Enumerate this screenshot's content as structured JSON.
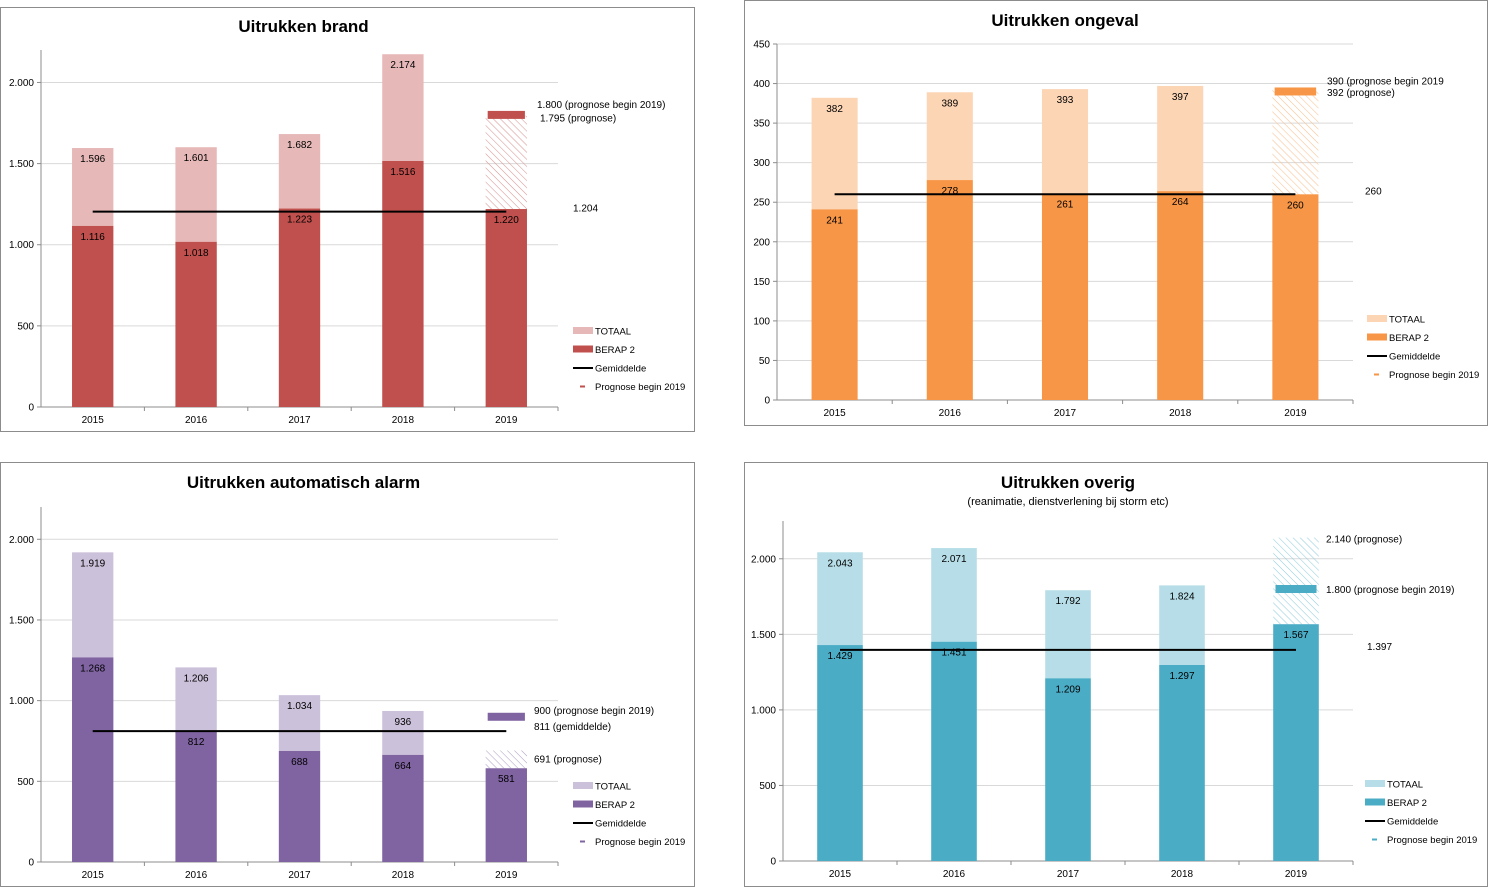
{
  "chart_data": [
    {
      "type": "bar",
      "title": "Uitrukken brand",
      "subtitle": "",
      "categories": [
        "2015",
        "2016",
        "2017",
        "2018",
        "2019"
      ],
      "ylim": [
        0,
        2200
      ],
      "yticks": [
        0,
        500,
        1000,
        1500,
        2000
      ],
      "ytick_labels": [
        "0",
        "500",
        "1.000",
        "1.500",
        "2.000"
      ],
      "grid": true,
      "legend_position": "right",
      "colors": {
        "totaal": "#e6b9b8",
        "berap": "#c0504d",
        "prognose": "#c0504d",
        "hatch": "#d99694"
      },
      "series": [
        {
          "name": "TOTAAL",
          "values": [
            1596,
            1601,
            1682,
            2174,
            1795
          ],
          "labels": [
            "1.596",
            "1.601",
            "1.682",
            "2.174",
            ""
          ]
        },
        {
          "name": "BERAP 2",
          "values": [
            1116,
            1018,
            1223,
            1516,
            1220
          ],
          "labels": [
            "1.116",
            "1.018",
            "1.223",
            "1.516",
            "1.220"
          ]
        },
        {
          "name": "Gemiddelde",
          "value": 1204,
          "label": "1.204"
        },
        {
          "name": "Prognose begin 2019",
          "value": 1800
        }
      ],
      "forecast_label": "1.795 (prognose)",
      "prognose_label": "1.800 (prognose begin 2019)",
      "legend": [
        "TOTAAL",
        "BERAP 2",
        "Gemiddelde",
        "Prognose begin 2019"
      ]
    },
    {
      "type": "bar",
      "title": "Uitrukken ongeval",
      "subtitle": "",
      "categories": [
        "2015",
        "2016",
        "2017",
        "2018",
        "2019"
      ],
      "ylim": [
        0,
        450
      ],
      "yticks": [
        0,
        50,
        100,
        150,
        200,
        250,
        300,
        350,
        400,
        450
      ],
      "ytick_labels": [
        "0",
        "50",
        "100",
        "150",
        "200",
        "250",
        "300",
        "350",
        "400",
        "450"
      ],
      "grid": true,
      "legend_position": "right",
      "colors": {
        "totaal": "#fcd5b5",
        "berap": "#f79646",
        "prognose": "#f79646",
        "hatch": "#fac090"
      },
      "series": [
        {
          "name": "TOTAAL",
          "values": [
            382,
            389,
            393,
            397,
            392
          ],
          "labels": [
            "382",
            "389",
            "393",
            "397",
            ""
          ]
        },
        {
          "name": "BERAP 2",
          "values": [
            241,
            278,
            261,
            264,
            260
          ],
          "labels": [
            "241",
            "278",
            "261",
            "264",
            "260"
          ]
        },
        {
          "name": "Gemiddelde",
          "value": 260,
          "label": "260"
        },
        {
          "name": "Prognose begin 2019",
          "value": 390
        }
      ],
      "forecast_label": "392 (prognose)",
      "prognose_label": "390 (prognose begin 2019",
      "legend": [
        "TOTAAL",
        "BERAP 2",
        "Gemiddelde",
        "Prognose begin 2019"
      ]
    },
    {
      "type": "bar",
      "title": "Uitrukken automatisch alarm",
      "subtitle": "",
      "categories": [
        "2015",
        "2016",
        "2017",
        "2018",
        "2019"
      ],
      "ylim": [
        0,
        2200
      ],
      "yticks": [
        0,
        500,
        1000,
        1500,
        2000
      ],
      "ytick_labels": [
        "0",
        "500",
        "1.000",
        "1.500",
        "2.000"
      ],
      "grid": true,
      "legend_position": "right",
      "colors": {
        "totaal": "#ccc1da",
        "berap": "#8064a2",
        "prognose": "#8064a2",
        "hatch": "#b3a2c7"
      },
      "series": [
        {
          "name": "TOTAAL",
          "values": [
            1919,
            1206,
            1034,
            936,
            691
          ],
          "labels": [
            "1.919",
            "1.206",
            "1.034",
            "936",
            ""
          ]
        },
        {
          "name": "BERAP 2",
          "values": [
            1268,
            812,
            688,
            664,
            581
          ],
          "labels": [
            "1.268",
            "812",
            "688",
            "664",
            "581"
          ]
        },
        {
          "name": "Gemiddelde",
          "value": 811,
          "label": "811 (gemiddelde)"
        },
        {
          "name": "Prognose begin 2019",
          "value": 900
        }
      ],
      "forecast_label": "691 (prognose)",
      "prognose_label": "900 (prognose begin 2019)",
      "legend": [
        "TOTAAL",
        "BERAP 2",
        "Gemiddelde",
        "Prognose begin 2019"
      ]
    },
    {
      "type": "bar",
      "title": "Uitrukken overig",
      "subtitle": "(reanimatie, dienstverlening bij storm etc)",
      "categories": [
        "2015",
        "2016",
        "2017",
        "2018",
        "2019"
      ],
      "ylim": [
        0,
        2250
      ],
      "yticks": [
        0,
        500,
        1000,
        1500,
        2000
      ],
      "ytick_labels": [
        "0",
        "500",
        "1.000",
        "1.500",
        "2.000"
      ],
      "grid": true,
      "legend_position": "right",
      "colors": {
        "totaal": "#b7dee8",
        "berap": "#4bacc6",
        "prognose": "#4bacc6",
        "hatch": "#93cddd"
      },
      "series": [
        {
          "name": "TOTAAL",
          "values": [
            2043,
            2071,
            1792,
            1824,
            2140
          ],
          "labels": [
            "2.043",
            "2.071",
            "1.792",
            "1.824",
            ""
          ]
        },
        {
          "name": "BERAP 2",
          "values": [
            1429,
            1451,
            1209,
            1297,
            1567
          ],
          "labels": [
            "1.429",
            "1.451",
            "1.209",
            "1.297",
            "1.567"
          ]
        },
        {
          "name": "Gemiddelde",
          "value": 1397,
          "label": "1.397"
        },
        {
          "name": "Prognose begin 2019",
          "value": 1800
        }
      ],
      "forecast_label": "2.140 (prognose)",
      "prognose_label": "1.800 (prognose begin 2019)",
      "legend": [
        "TOTAAL",
        "BERAP 2",
        "Gemiddelde",
        "Prognose begin 2019"
      ]
    }
  ]
}
